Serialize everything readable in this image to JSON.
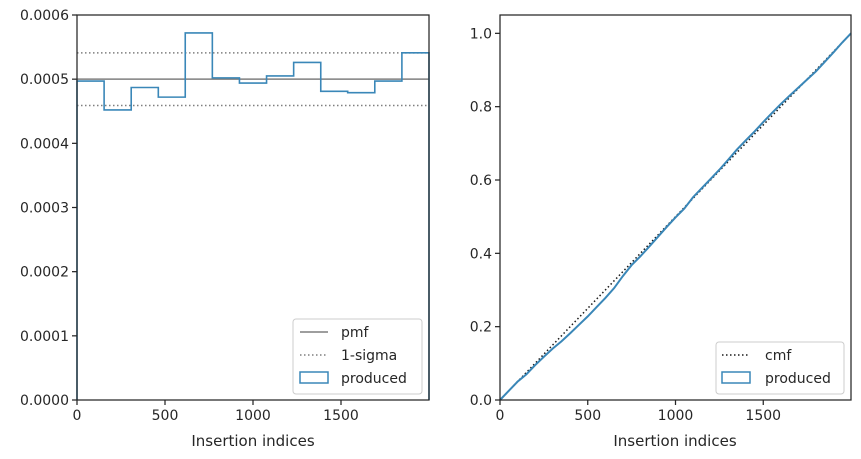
{
  "colors": {
    "produced": "#3a87b8",
    "reference": "#7f7f7f",
    "cmf": "#1a1a1a",
    "spine": "#262626"
  },
  "chart_data": [
    {
      "type": "histogram",
      "xlabel": "Insertion indices",
      "ylabel": "",
      "xlim": [
        0,
        2000
      ],
      "ylim": [
        0,
        0.0006
      ],
      "x_ticks": [
        "0",
        "500",
        "1000",
        "1500"
      ],
      "y_ticks": [
        "0.0000",
        "0.0001",
        "0.0002",
        "0.0003",
        "0.0004",
        "0.0005",
        "0.0006"
      ],
      "bin_edges": [
        0,
        154,
        308,
        462,
        615,
        769,
        923,
        1077,
        1231,
        1385,
        1538,
        1692,
        1846,
        2000
      ],
      "series": [
        {
          "name": "produced",
          "style": "step",
          "values": [
            0.000497,
            0.000452,
            0.000487,
            0.000472,
            0.000572,
            0.000502,
            0.000494,
            0.000505,
            0.000526,
            0.000481,
            0.000479,
            0.000497,
            0.000541
          ]
        }
      ],
      "reference_lines": [
        {
          "name": "pmf",
          "style": "solid",
          "y": 0.0005
        },
        {
          "name": "1-sigma",
          "style": "dotted",
          "y": [
            0.000541,
            0.000459
          ]
        }
      ],
      "legend": {
        "position": "bottom-right",
        "entries": [
          "pmf",
          "1-sigma",
          "produced"
        ]
      }
    },
    {
      "type": "line",
      "xlabel": "Insertion indices",
      "ylabel": "",
      "xlim": [
        0,
        2000
      ],
      "ylim": [
        0,
        1.05
      ],
      "x_ticks": [
        "0",
        "500",
        "1000",
        "1500"
      ],
      "y_ticks": [
        "0.0",
        "0.2",
        "0.4",
        "0.6",
        "0.8",
        "1.0"
      ],
      "series": [
        {
          "name": "cmf",
          "style": "dotted",
          "x": [
            0,
            2000
          ],
          "y": [
            0,
            1
          ]
        },
        {
          "name": "produced",
          "style": "solid",
          "x": [
            0,
            50,
            100,
            150,
            200,
            250,
            300,
            350,
            400,
            450,
            500,
            550,
            600,
            650,
            700,
            750,
            800,
            850,
            900,
            950,
            1000,
            1050,
            1100,
            1150,
            1200,
            1250,
            1300,
            1350,
            1400,
            1450,
            1500,
            1550,
            1600,
            1650,
            1700,
            1750,
            1800,
            1850,
            1900,
            1950,
            2000
          ],
          "y": [
            0,
            0.025,
            0.05,
            0.07,
            0.095,
            0.118,
            0.14,
            0.16,
            0.182,
            0.205,
            0.228,
            0.253,
            0.278,
            0.305,
            0.338,
            0.368,
            0.392,
            0.418,
            0.445,
            0.472,
            0.498,
            0.522,
            0.553,
            0.578,
            0.603,
            0.628,
            0.655,
            0.683,
            0.708,
            0.732,
            0.758,
            0.783,
            0.807,
            0.83,
            0.852,
            0.874,
            0.896,
            0.922,
            0.948,
            0.975,
            1.0
          ]
        }
      ],
      "legend": {
        "position": "bottom-right",
        "entries": [
          "cmf",
          "produced"
        ]
      }
    }
  ]
}
